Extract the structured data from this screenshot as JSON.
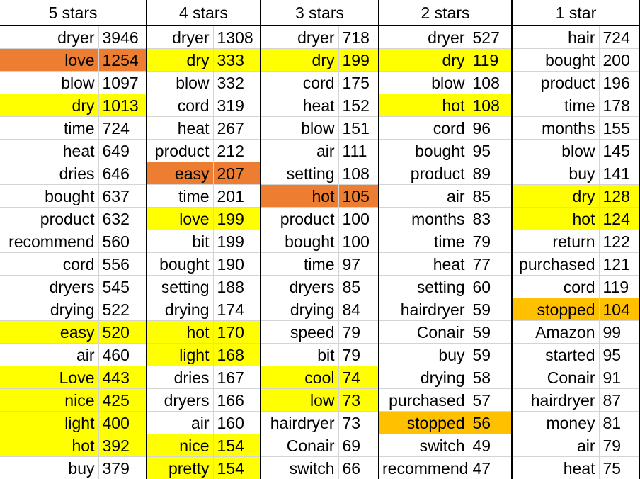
{
  "colors": {
    "yellow": "#ffff00",
    "orange": "#ed7d31",
    "amber": "#ffc000"
  },
  "columns": [
    {
      "header": "5 stars",
      "rows": [
        {
          "word": "dryer",
          "count": "3946",
          "hl": ""
        },
        {
          "word": "love",
          "count": "1254",
          "hl": "orange"
        },
        {
          "word": "blow",
          "count": "1097",
          "hl": ""
        },
        {
          "word": "dry",
          "count": "1013",
          "hl": "yellow"
        },
        {
          "word": "time",
          "count": "724",
          "hl": ""
        },
        {
          "word": "heat",
          "count": "649",
          "hl": ""
        },
        {
          "word": "dries",
          "count": "646",
          "hl": ""
        },
        {
          "word": "bought",
          "count": "637",
          "hl": ""
        },
        {
          "word": "product",
          "count": "632",
          "hl": ""
        },
        {
          "word": "recommend",
          "count": "560",
          "hl": ""
        },
        {
          "word": "cord",
          "count": "556",
          "hl": ""
        },
        {
          "word": "dryers",
          "count": "545",
          "hl": ""
        },
        {
          "word": "drying",
          "count": "522",
          "hl": ""
        },
        {
          "word": "easy",
          "count": "520",
          "hl": "yellow"
        },
        {
          "word": "air",
          "count": "460",
          "hl": ""
        },
        {
          "word": "Love",
          "count": "443",
          "hl": "yellow"
        },
        {
          "word": "nice",
          "count": "425",
          "hl": "yellow"
        },
        {
          "word": "light",
          "count": "400",
          "hl": "yellow"
        },
        {
          "word": "hot",
          "count": "392",
          "hl": "yellow"
        },
        {
          "word": "buy",
          "count": "379",
          "hl": ""
        }
      ]
    },
    {
      "header": "4 stars",
      "rows": [
        {
          "word": "dryer",
          "count": "1308",
          "hl": ""
        },
        {
          "word": "dry",
          "count": "333",
          "hl": "yellow"
        },
        {
          "word": "blow",
          "count": "332",
          "hl": ""
        },
        {
          "word": "cord",
          "count": "319",
          "hl": ""
        },
        {
          "word": "heat",
          "count": "267",
          "hl": ""
        },
        {
          "word": "product",
          "count": "212",
          "hl": ""
        },
        {
          "word": "easy",
          "count": "207",
          "hl": "orange"
        },
        {
          "word": "time",
          "count": "201",
          "hl": ""
        },
        {
          "word": "love",
          "count": "199",
          "hl": "yellow"
        },
        {
          "word": "bit",
          "count": "199",
          "hl": ""
        },
        {
          "word": "bought",
          "count": "190",
          "hl": ""
        },
        {
          "word": "setting",
          "count": "188",
          "hl": ""
        },
        {
          "word": "drying",
          "count": "174",
          "hl": ""
        },
        {
          "word": "hot",
          "count": "170",
          "hl": "yellow"
        },
        {
          "word": "light",
          "count": "168",
          "hl": "yellow"
        },
        {
          "word": "dries",
          "count": "167",
          "hl": ""
        },
        {
          "word": "dryers",
          "count": "166",
          "hl": ""
        },
        {
          "word": "air",
          "count": "160",
          "hl": ""
        },
        {
          "word": "nice",
          "count": "154",
          "hl": "yellow"
        },
        {
          "word": "pretty",
          "count": "154",
          "hl": "yellow"
        }
      ]
    },
    {
      "header": "3 stars",
      "rows": [
        {
          "word": "dryer",
          "count": "718",
          "hl": ""
        },
        {
          "word": "dry",
          "count": "199",
          "hl": "yellow"
        },
        {
          "word": "cord",
          "count": "175",
          "hl": ""
        },
        {
          "word": "heat",
          "count": "152",
          "hl": ""
        },
        {
          "word": "blow",
          "count": "151",
          "hl": ""
        },
        {
          "word": "air",
          "count": "111",
          "hl": ""
        },
        {
          "word": "setting",
          "count": "108",
          "hl": ""
        },
        {
          "word": "hot",
          "count": "105",
          "hl": "orange"
        },
        {
          "word": "product",
          "count": "100",
          "hl": ""
        },
        {
          "word": "bought",
          "count": "100",
          "hl": ""
        },
        {
          "word": "time",
          "count": "97",
          "hl": ""
        },
        {
          "word": "dryers",
          "count": "85",
          "hl": ""
        },
        {
          "word": "drying",
          "count": "84",
          "hl": ""
        },
        {
          "word": "speed",
          "count": "79",
          "hl": ""
        },
        {
          "word": "bit",
          "count": "79",
          "hl": ""
        },
        {
          "word": "cool",
          "count": "74",
          "hl": "yellow"
        },
        {
          "word": "low",
          "count": "73",
          "hl": "yellow"
        },
        {
          "word": "hairdryer",
          "count": "73",
          "hl": ""
        },
        {
          "word": "Conair",
          "count": "69",
          "hl": ""
        },
        {
          "word": "switch",
          "count": "66",
          "hl": ""
        }
      ]
    },
    {
      "header": "2 stars",
      "rows": [
        {
          "word": "dryer",
          "count": "527",
          "hl": ""
        },
        {
          "word": "dry",
          "count": "119",
          "hl": "yellow"
        },
        {
          "word": "blow",
          "count": "108",
          "hl": ""
        },
        {
          "word": "hot",
          "count": "108",
          "hl": "yellow"
        },
        {
          "word": "cord",
          "count": "96",
          "hl": ""
        },
        {
          "word": "bought",
          "count": "95",
          "hl": ""
        },
        {
          "word": "product",
          "count": "89",
          "hl": ""
        },
        {
          "word": "air",
          "count": "85",
          "hl": ""
        },
        {
          "word": "months",
          "count": "83",
          "hl": ""
        },
        {
          "word": "time",
          "count": "79",
          "hl": ""
        },
        {
          "word": "heat",
          "count": "77",
          "hl": ""
        },
        {
          "word": "setting",
          "count": "60",
          "hl": ""
        },
        {
          "word": "hairdryer",
          "count": "59",
          "hl": ""
        },
        {
          "word": "Conair",
          "count": "59",
          "hl": ""
        },
        {
          "word": "buy",
          "count": "59",
          "hl": ""
        },
        {
          "word": "drying",
          "count": "58",
          "hl": ""
        },
        {
          "word": "purchased",
          "count": "57",
          "hl": ""
        },
        {
          "word": "stopped",
          "count": "56",
          "hl": "amber"
        },
        {
          "word": "switch",
          "count": "49",
          "hl": ""
        },
        {
          "word": "recommend",
          "count": "47",
          "hl": ""
        }
      ]
    },
    {
      "header": "1 star",
      "rows": [
        {
          "word": "hair",
          "count": "724",
          "hl": ""
        },
        {
          "word": "bought",
          "count": "200",
          "hl": ""
        },
        {
          "word": "product",
          "count": "196",
          "hl": ""
        },
        {
          "word": "time",
          "count": "178",
          "hl": ""
        },
        {
          "word": "months",
          "count": "155",
          "hl": ""
        },
        {
          "word": "blow",
          "count": "145",
          "hl": ""
        },
        {
          "word": "buy",
          "count": "141",
          "hl": ""
        },
        {
          "word": "dry",
          "count": "128",
          "hl": "yellow"
        },
        {
          "word": "hot",
          "count": "124",
          "hl": "yellow"
        },
        {
          "word": "return",
          "count": "122",
          "hl": ""
        },
        {
          "word": "purchased",
          "count": "121",
          "hl": ""
        },
        {
          "word": "cord",
          "count": "119",
          "hl": ""
        },
        {
          "word": "stopped",
          "count": "104",
          "hl": "amber"
        },
        {
          "word": "Amazon",
          "count": "99",
          "hl": ""
        },
        {
          "word": "started",
          "count": "95",
          "hl": ""
        },
        {
          "word": "Conair",
          "count": "91",
          "hl": ""
        },
        {
          "word": "hairdryer",
          "count": "87",
          "hl": ""
        },
        {
          "word": "money",
          "count": "81",
          "hl": ""
        },
        {
          "word": "air",
          "count": "79",
          "hl": ""
        },
        {
          "word": "heat",
          "count": "75",
          "hl": ""
        }
      ]
    }
  ]
}
